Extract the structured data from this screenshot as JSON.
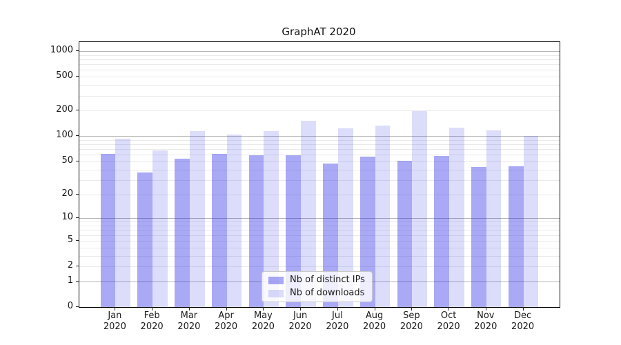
{
  "chart_data": {
    "type": "bar",
    "title": "GraphAT 2020",
    "xlabel": "",
    "ylabel": "",
    "x_axis": {
      "months": [
        "Jan",
        "Feb",
        "Mar",
        "Apr",
        "May",
        "Jun",
        "Jul",
        "Aug",
        "Sep",
        "Oct",
        "Nov",
        "Dec"
      ],
      "year": "2020"
    },
    "y_axis": {
      "scale": "symlog-log10(1+v)",
      "tick_values": [
        1000,
        500,
        200,
        100,
        50,
        20,
        10,
        5,
        2,
        1,
        0
      ],
      "tick_labels": [
        "1000",
        "500",
        "200",
        "100",
        "50",
        "20",
        "10",
        "5",
        "2",
        "1",
        "0"
      ],
      "top_value": 1275,
      "grid": true
    },
    "series": [
      {
        "name": "Nb of distinct IPs",
        "fill_css": "rgba(30,30,230,0.38)",
        "approx_hex": "#a6a6f7",
        "values": [
          61,
          37,
          54,
          61,
          59,
          59,
          47,
          57,
          51,
          58,
          43,
          44
        ]
      },
      {
        "name": "Nb of downloads",
        "fill_css": "rgba(30,30,230,0.156)",
        "approx_hex": "#dcdcfb",
        "values": [
          93,
          67,
          114,
          104,
          114,
          153,
          124,
          134,
          199,
          125,
          117,
          100
        ]
      }
    ],
    "legend": {
      "position": "lower center",
      "items": [
        "Nb of distinct IPs",
        "Nb of downloads"
      ]
    },
    "colors": {
      "major_gridline": "#b4b4b4",
      "minor_gridline": "#eaeaea",
      "spine": "#000000",
      "text": "#1a1a1a"
    }
  }
}
